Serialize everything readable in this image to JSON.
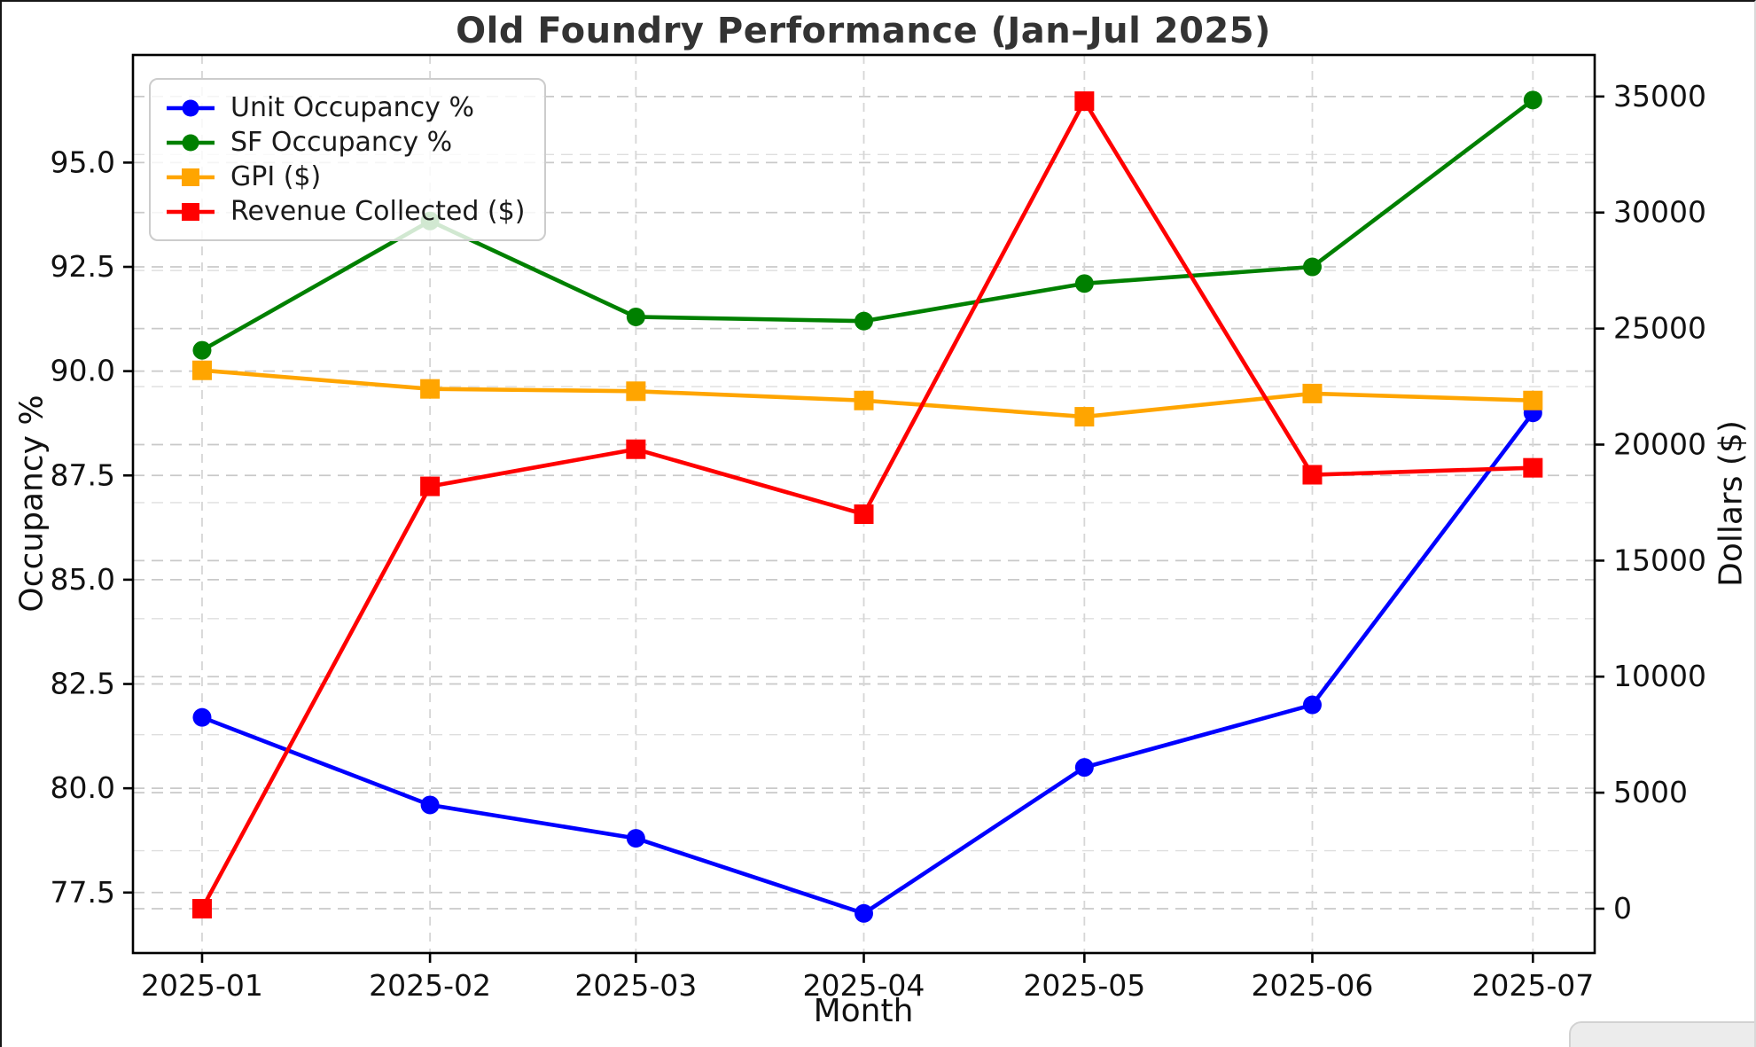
{
  "chart_data": {
    "type": "line",
    "title": "Old Foundry Performance (Jan–Jul 2025)",
    "xlabel": "Month",
    "ylabel_left": "Occupancy %",
    "ylabel_right": "Dollars ($)",
    "x_categories": [
      "2025-01",
      "2025-02",
      "2025-03",
      "2025-04",
      "2025-05",
      "2025-06",
      "2025-07"
    ],
    "x_day_offsets": [
      0,
      31,
      59,
      90,
      120,
      151,
      181
    ],
    "x_range_days": [
      -9.4,
      189.4
    ],
    "series": [
      {
        "name": "Unit Occupancy %",
        "axis": "left",
        "color": "#0000ff",
        "marker": "circle",
        "values": [
          81.7,
          79.6,
          78.8,
          77.0,
          80.5,
          82.0,
          89.0
        ]
      },
      {
        "name": "SF Occupancy %",
        "axis": "left",
        "color": "#008000",
        "marker": "circle",
        "values": [
          90.5,
          93.6,
          91.3,
          91.2,
          92.1,
          92.5,
          96.5
        ]
      },
      {
        "name": "GPI ($)",
        "axis": "right",
        "color": "#ffa500",
        "marker": "square",
        "values": [
          23200,
          22400,
          22300,
          21900,
          21200,
          22200,
          21900
        ]
      },
      {
        "name": "Revenue Collected ($)",
        "axis": "right",
        "color": "#ff0000",
        "marker": "square",
        "values": [
          0,
          18200,
          19800,
          17000,
          34800,
          18700,
          19000
        ]
      }
    ],
    "left_axis": {
      "range": [
        76.05,
        97.58
      ],
      "tick_values": [
        77.5,
        80.0,
        82.5,
        85.0,
        87.5,
        90.0,
        92.5,
        95.0
      ],
      "tick_labels": [
        "77.5",
        "80.0",
        "82.5",
        "85.0",
        "87.5",
        "90.0",
        "92.5",
        "95.0"
      ]
    },
    "right_axis": {
      "range": [
        -1910,
        36790
      ],
      "tick_values": [
        0,
        5000,
        10000,
        15000,
        20000,
        25000,
        30000,
        35000
      ],
      "tick_labels": [
        "0",
        "5000",
        "10000",
        "15000",
        "20000",
        "25000",
        "30000",
        "35000"
      ],
      "minor_step": 2500
    },
    "grid": true,
    "legend_position": "upper left",
    "style": {
      "grid_color": "#c9c9c9",
      "grid_minor_color": "#dedede",
      "spine_color": "#000000",
      "text_color": "#111111"
    }
  },
  "window": {
    "bottom_right_pill": ""
  }
}
